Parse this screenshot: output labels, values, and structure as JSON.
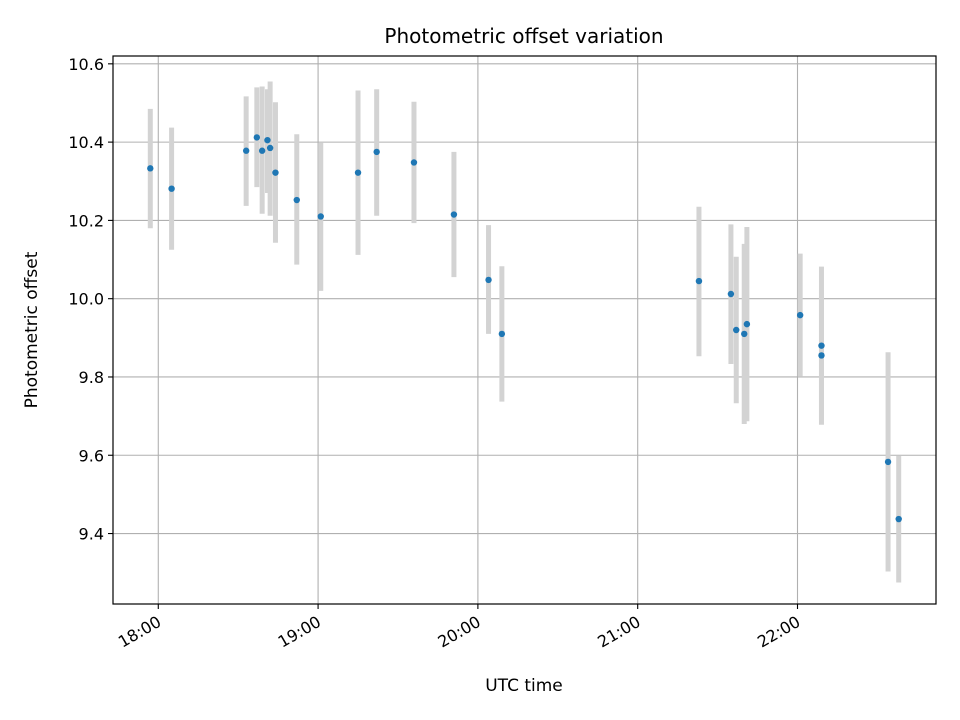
{
  "chart_data": {
    "type": "scatter",
    "title": "Photometric offset variation",
    "xlabel": "UTC time",
    "ylabel": "Photometric offset",
    "xlim": [
      "17:43",
      "22:52"
    ],
    "ylim": [
      9.22,
      10.62
    ],
    "x_ticks": [
      "18:00",
      "19:00",
      "20:00",
      "21:00",
      "22:00"
    ],
    "y_ticks": [
      "9.4",
      "9.6",
      "9.8",
      "10.0",
      "10.2",
      "10.4",
      "10.6"
    ],
    "grid": true,
    "marker_color": "#1f77b4",
    "errorbar_color": "#d3d3d3",
    "series": [
      {
        "name": "Photometric offset",
        "points": [
          {
            "t": "17:57",
            "y": 10.333,
            "lo": 10.18,
            "hi": 10.485
          },
          {
            "t": "18:05",
            "y": 10.281,
            "lo": 10.125,
            "hi": 10.437
          },
          {
            "t": "18:33",
            "y": 10.378,
            "lo": 10.237,
            "hi": 10.517
          },
          {
            "t": "18:37",
            "y": 10.412,
            "lo": 10.285,
            "hi": 10.54
          },
          {
            "t": "18:39",
            "y": 10.378,
            "lo": 10.217,
            "hi": 10.542
          },
          {
            "t": "18:41",
            "y": 10.405,
            "lo": 10.27,
            "hi": 10.535
          },
          {
            "t": "18:42",
            "y": 10.385,
            "lo": 10.212,
            "hi": 10.555
          },
          {
            "t": "18:44",
            "y": 10.322,
            "lo": 10.143,
            "hi": 10.502
          },
          {
            "t": "18:52",
            "y": 10.252,
            "lo": 10.087,
            "hi": 10.42
          },
          {
            "t": "19:01",
            "y": 10.21,
            "lo": 10.02,
            "hi": 10.398
          },
          {
            "t": "19:15",
            "y": 10.322,
            "lo": 10.112,
            "hi": 10.532
          },
          {
            "t": "19:22",
            "y": 10.375,
            "lo": 10.212,
            "hi": 10.535
          },
          {
            "t": "19:36",
            "y": 10.348,
            "lo": 10.193,
            "hi": 10.503
          },
          {
            "t": "19:51",
            "y": 10.215,
            "lo": 10.055,
            "hi": 10.375
          },
          {
            "t": "20:04",
            "y": 10.048,
            "lo": 9.91,
            "hi": 10.188
          },
          {
            "t": "20:09",
            "y": 9.91,
            "lo": 9.737,
            "hi": 10.083
          },
          {
            "t": "21:23",
            "y": 10.045,
            "lo": 9.853,
            "hi": 10.235
          },
          {
            "t": "21:35",
            "y": 10.012,
            "lo": 9.833,
            "hi": 10.19
          },
          {
            "t": "21:37",
            "y": 9.92,
            "lo": 9.733,
            "hi": 10.107
          },
          {
            "t": "21:40",
            "y": 9.91,
            "lo": 9.68,
            "hi": 10.14
          },
          {
            "t": "21:41",
            "y": 9.935,
            "lo": 9.687,
            "hi": 10.183
          },
          {
            "t": "22:01",
            "y": 9.958,
            "lo": 9.802,
            "hi": 10.115
          },
          {
            "t": "22:09",
            "y": 9.855,
            "lo": 9.69,
            "hi": 10.023
          },
          {
            "t": "22:09",
            "y": 9.88,
            "lo": 9.678,
            "hi": 10.082
          },
          {
            "t": "22:34",
            "y": 9.583,
            "lo": 9.303,
            "hi": 9.863
          },
          {
            "t": "22:38",
            "y": 9.437,
            "lo": 9.275,
            "hi": 9.598
          }
        ]
      }
    ]
  }
}
